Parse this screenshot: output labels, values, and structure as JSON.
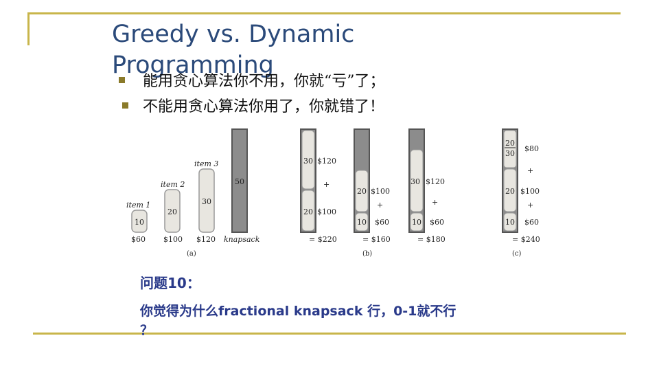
{
  "slide": {
    "title_line1": "Greedy vs. Dynamic",
    "title_line2": "Programming",
    "bullets": [
      "能用贪心算法你不用，你就“亏”了；",
      "不能用贪心算法你用了，你就错了！"
    ],
    "question_heading": "问题10：",
    "question_line1": "你觉得为什么fractional knapsack 行，0-1就不行",
    "question_line2": "？"
  },
  "figure": {
    "items": [
      {
        "label": "item 1",
        "weight": "10",
        "price": "$60"
      },
      {
        "label": "item 2",
        "weight": "20",
        "price": "$100"
      },
      {
        "label": "item 3",
        "weight": "30",
        "price": "$120"
      }
    ],
    "knapsack": {
      "capacity": "50",
      "label": "knapsack"
    },
    "panel_labels": {
      "a": "(a)",
      "b": "(b)",
      "c": "(c)"
    },
    "b1": {
      "top_w": "30",
      "top_p": "$120",
      "plus": "+",
      "bot_w": "20",
      "bot_p": "$100",
      "total": "= $220"
    },
    "b2": {
      "top_w": "20",
      "top_p": "$100",
      "plus": "+",
      "bot_w": "10",
      "bot_p": "$60",
      "total": "= $160"
    },
    "b3": {
      "top_w": "30",
      "top_p": "$120",
      "plus": "+",
      "bot_w": "10",
      "bot_p": "$60",
      "total": "= $180"
    },
    "c": {
      "frac_num": "20",
      "frac_den": "30",
      "p1": "$80",
      "plus1": "+",
      "w2": "20",
      "p2": "$100",
      "plus2": "+",
      "w3": "10",
      "p3": "$60",
      "total": "= $240"
    }
  },
  "colors": {
    "accent_rule": "#c8b54a",
    "title": "#2b4a7a",
    "question": "#2a3a8a",
    "gray_fill": "#8c8c8c"
  }
}
